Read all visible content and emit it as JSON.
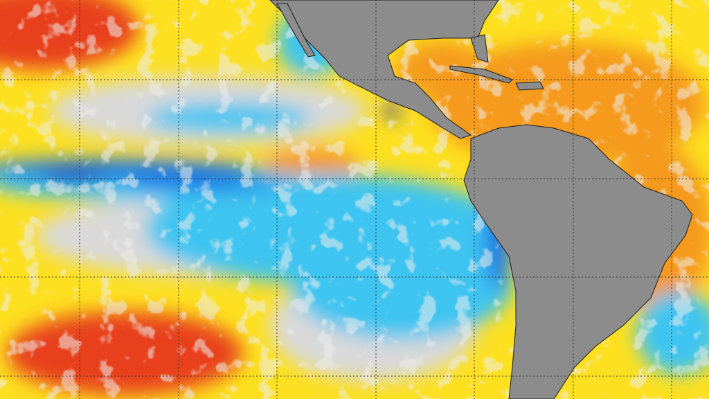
{
  "colors": {
    "warm_strong": "#e8401c",
    "warm": "#f59a1e",
    "warm_light": "#fde020",
    "neutral": "#d9d9d9",
    "cool_light": "#3cc4f0",
    "cool": "#1e78e6",
    "cool_strong": "#1a2fb4",
    "land": "#8c8c8c",
    "coastline": "#1a1a1a",
    "gridline": "#333333"
  }
}
